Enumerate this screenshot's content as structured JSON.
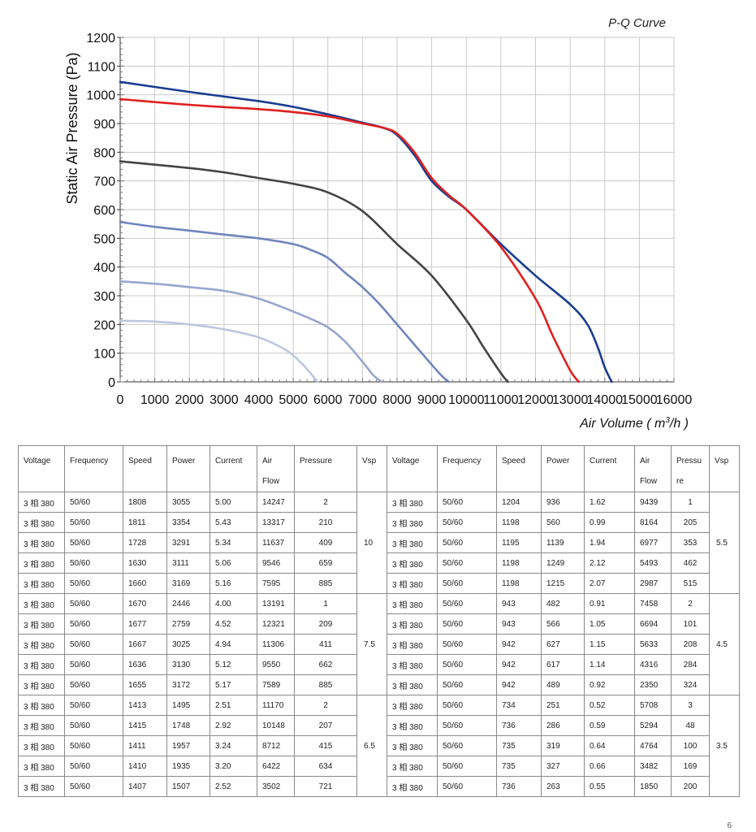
{
  "chart_data": {
    "type": "line",
    "title": "P-Q Curve",
    "ylabel": "Static Air Pressure  (Pa)",
    "xlabel_main": "Air Volume ( m",
    "xlabel_sup": "3",
    "xlabel_end": "/h )",
    "xlim": [
      0,
      16000
    ],
    "ylim": [
      0,
      1200
    ],
    "xticks": [
      "0",
      "1000",
      "2000",
      "3000",
      "4000",
      "5000",
      "6000",
      "7000",
      "8000",
      "9000",
      "10000",
      "11000",
      "12000",
      "13000",
      "14000",
      "15000",
      "16000"
    ],
    "yticks": [
      "0",
      "100",
      "200",
      "300",
      "400",
      "500",
      "600",
      "700",
      "800",
      "900",
      "1000",
      "1100",
      "1200"
    ],
    "grid": true,
    "series": [
      {
        "color": "#1a3d8f",
        "x": [
          0,
          2000,
          4000,
          5000,
          6000,
          7000,
          7600,
          8000,
          8500,
          9000,
          9500,
          10000,
          11000,
          12000,
          13000,
          13500,
          13800,
          14000,
          14200
        ],
        "y": [
          1045,
          1010,
          978,
          958,
          932,
          903,
          885,
          860,
          790,
          700,
          645,
          600,
          480,
          370,
          270,
          200,
          120,
          50,
          0
        ]
      },
      {
        "color": "#e02020",
        "x": [
          0,
          2000,
          4000,
          5000,
          6000,
          7000,
          7600,
          8000,
          8500,
          9000,
          9500,
          10000,
          11000,
          12000,
          12500,
          13000,
          13250
        ],
        "y": [
          985,
          965,
          950,
          940,
          925,
          900,
          885,
          865,
          800,
          710,
          650,
          600,
          470,
          290,
          160,
          40,
          0
        ]
      },
      {
        "color": "#444444",
        "x": [
          0,
          2000,
          3000,
          4000,
          5000,
          6000,
          7000,
          8000,
          9000,
          10000,
          10500,
          11000,
          11200
        ],
        "y": [
          768,
          745,
          730,
          710,
          690,
          660,
          595,
          480,
          370,
          215,
          120,
          30,
          0
        ]
      },
      {
        "color": "#7085bd",
        "x": [
          0,
          1000,
          2000,
          3000,
          4000,
          5000,
          5500,
          6000,
          6500,
          7000,
          7500,
          8000,
          8500,
          9000,
          9300,
          9500
        ],
        "y": [
          557,
          540,
          527,
          513,
          500,
          480,
          460,
          432,
          380,
          330,
          270,
          200,
          130,
          60,
          20,
          0
        ]
      },
      {
        "color": "#98a6cf",
        "x": [
          0,
          1000,
          2000,
          3000,
          4000,
          5000,
          5500,
          6000,
          6500,
          7000,
          7300,
          7550
        ],
        "y": [
          350,
          342,
          330,
          317,
          290,
          245,
          220,
          190,
          140,
          70,
          25,
          0
        ]
      },
      {
        "color": "#bcc6e0",
        "x": [
          0,
          1000,
          2000,
          3000,
          4000,
          4800,
          5200,
          5500,
          5700
        ],
        "y": [
          213,
          210,
          200,
          183,
          155,
          110,
          70,
          30,
          0
        ]
      }
    ]
  },
  "table": {
    "header": [
      "Voltage",
      "Frequency",
      "Speed",
      "Power",
      "Current",
      "Air Flow",
      "Pressure",
      "Vsp",
      "Voltage",
      "Frequency",
      "Speed",
      "Power",
      "Current",
      "Air Flow",
      "Pressu re",
      "Vsp"
    ],
    "groups": [
      {
        "vsp_left": "10",
        "vsp_right": "5.5",
        "rows": [
          {
            "left": [
              "3 相 380",
              "50/60",
              "1808",
              "3055",
              "5.00",
              "14247",
              "2"
            ],
            "right": [
              "3 相 380",
              "50/60",
              "1204",
              "936",
              "1.62",
              "9439",
              "1"
            ]
          },
          {
            "left": [
              "3 相 380",
              "50/60",
              "1811",
              "3354",
              "5.43",
              "13317",
              "210"
            ],
            "right": [
              "3 相 380",
              "50/60",
              "1198",
              "560",
              "0.99",
              "8164",
              "205"
            ]
          },
          {
            "left": [
              "3 相 380",
              "50/60",
              "1728",
              "3291",
              "5.34",
              "11637",
              "409"
            ],
            "right": [
              "3 相 380",
              "50/60",
              "1195",
              "1139",
              "1.94",
              "6977",
              "353"
            ]
          },
          {
            "left": [
              "3 相 380",
              "50/60",
              "1630",
              "3111",
              "5.06",
              "9546",
              "659"
            ],
            "right": [
              "3 相 380",
              "50/60",
              "1198",
              "1249",
              "2.12",
              "5493",
              "462"
            ]
          },
          {
            "left": [
              "3 相 380",
              "50/60",
              "1660",
              "3169",
              "5.16",
              "7595",
              "885"
            ],
            "right": [
              "3 相 380",
              "50/60",
              "1198",
              "1215",
              "2.07",
              "2987",
              "515"
            ]
          }
        ]
      },
      {
        "vsp_left": "7.5",
        "vsp_right": "4.5",
        "rows": [
          {
            "left": [
              "3 相 380",
              "50/60",
              "1670",
              "2446",
              "4.00",
              "13191",
              "1"
            ],
            "right": [
              "3 相 380",
              "50/60",
              "943",
              "482",
              "0.91",
              "7458",
              "2"
            ]
          },
          {
            "left": [
              "3 相 380",
              "50/60",
              "1677",
              "2759",
              "4.52",
              "12321",
              "209"
            ],
            "right": [
              "3 相 380",
              "50/60",
              "943",
              "566",
              "1.05",
              "6694",
              "101"
            ]
          },
          {
            "left": [
              "3 相 380",
              "50/60",
              "1667",
              "3025",
              "4.94",
              "11306",
              "411"
            ],
            "right": [
              "3 相 380",
              "50/60",
              "942",
              "627",
              "1.15",
              "5633",
              "208"
            ]
          },
          {
            "left": [
              "3 相 380",
              "50/60",
              "1636",
              "3130",
              "5.12",
              "9550",
              "662"
            ],
            "right": [
              "3 相 380",
              "50/60",
              "942",
              "617",
              "1.14",
              "4316",
              "284"
            ]
          },
          {
            "left": [
              "3 相 380",
              "50/60",
              "1655",
              "3172",
              "5.17",
              "7589",
              "885"
            ],
            "right": [
              "3 相 380",
              "50/60",
              "942",
              "489",
              "0.92",
              "2350",
              "324"
            ]
          }
        ]
      },
      {
        "vsp_left": "6.5",
        "vsp_right": "3.5",
        "rows": [
          {
            "left": [
              "3 相 380",
              "50/60",
              "1413",
              "1495",
              "2.51",
              "11170",
              "2"
            ],
            "right": [
              "3 相 380",
              "50/60",
              "734",
              "251",
              "0.52",
              "5708",
              "3"
            ]
          },
          {
            "left": [
              "3 相 380",
              "50/60",
              "1415",
              "1748",
              "2.92",
              "10148",
              "207"
            ],
            "right": [
              "3 相 380",
              "50/60",
              "736",
              "286",
              "0.59",
              "5294",
              "48"
            ]
          },
          {
            "left": [
              "3 相 380",
              "50/60",
              "1411",
              "1957",
              "3.24",
              "8712",
              "415"
            ],
            "right": [
              "3 相 380",
              "50/60",
              "735",
              "319",
              "0.64",
              "4764",
              "100"
            ]
          },
          {
            "left": [
              "3 相 380",
              "50/60",
              "1410",
              "1935",
              "3.20",
              "6422",
              "634"
            ],
            "right": [
              "3 相 380",
              "50/60",
              "735",
              "327",
              "0.66",
              "3482",
              "169"
            ]
          },
          {
            "left": [
              "3 相 380",
              "50/60",
              "1407",
              "1507",
              "2.52",
              "3502",
              "721"
            ],
            "right": [
              "3 相 380",
              "50/60",
              "736",
              "263",
              "0.55",
              "1850",
              "200"
            ]
          }
        ]
      }
    ]
  },
  "page_number": "6"
}
